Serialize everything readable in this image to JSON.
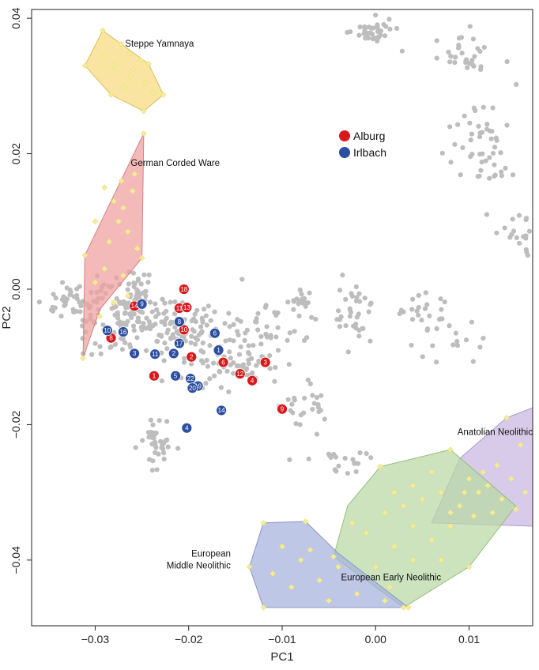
{
  "chart_data": {
    "type": "scatter",
    "xlabel": "PC1",
    "ylabel": "PC2",
    "xlim": [
      -0.0368,
      0.0168
    ],
    "ylim": [
      -0.0497,
      0.0413
    ],
    "xticks": [
      -0.03,
      -0.02,
      -0.01,
      0.0,
      0.01
    ],
    "xtick_labels": [
      "−0.03",
      "−0.02",
      "−0.01",
      "0.00",
      "0.01"
    ],
    "yticks": [
      -0.04,
      -0.02,
      0.0,
      0.02,
      0.04
    ],
    "ytick_labels": [
      "−0.04",
      "−0.02",
      "0.00",
      "0.02",
      "0.04"
    ],
    "colors": {
      "background_points": "#bdbdbd",
      "reference_points": "#f3ec95",
      "Alburg": "#d7191c",
      "Irlbach": "#2c4ea0"
    },
    "legend": {
      "placement": "top-center",
      "entries": [
        {
          "name": "Alburg",
          "color": "#d7191c"
        },
        {
          "name": "Irlbach",
          "color": "#2c4ea0"
        }
      ]
    },
    "groups": [
      {
        "name": "Steppe Yamnaya",
        "fill": "#f7d97e",
        "stroke": "#d9c060",
        "label_x": -0.0268,
        "label_y": 0.0358,
        "label_anchor": "start",
        "hull": [
          [
            -0.0292,
            0.0382
          ],
          [
            -0.0311,
            0.033
          ],
          [
            -0.0283,
            0.0287
          ],
          [
            -0.0248,
            0.0263
          ],
          [
            -0.0227,
            0.0287
          ],
          [
            -0.0243,
            0.0333
          ]
        ],
        "points": [
          [
            -0.029,
            0.0345
          ],
          [
            -0.028,
            0.033
          ],
          [
            -0.0272,
            0.0362
          ],
          [
            -0.0264,
            0.0348
          ],
          [
            -0.0259,
            0.0325
          ],
          [
            -0.0251,
            0.0338
          ],
          [
            -0.0246,
            0.0305
          ],
          [
            -0.0238,
            0.029
          ],
          [
            -0.027,
            0.0298
          ],
          [
            -0.0262,
            0.0315
          ],
          [
            -0.0283,
            0.0287
          ],
          [
            -0.0248,
            0.0263
          ],
          [
            -0.0227,
            0.0287
          ],
          [
            -0.0292,
            0.0382
          ],
          [
            -0.0311,
            0.033
          ],
          [
            -0.0243,
            0.0333
          ]
        ]
      },
      {
        "name": "German Corded Ware",
        "fill": "#f0a0a0",
        "stroke": "#d88080",
        "label_x": -0.0262,
        "label_y": 0.0182,
        "label_anchor": "start",
        "hull": [
          [
            -0.0248,
            0.023
          ],
          [
            -0.025,
            0.0046
          ],
          [
            -0.0295,
            -0.003
          ],
          [
            -0.0313,
            -0.0102
          ],
          [
            -0.0311,
            0.005
          ]
        ],
        "points": [
          [
            -0.0248,
            0.023
          ],
          [
            -0.025,
            0.0046
          ],
          [
            -0.0313,
            -0.0102
          ],
          [
            -0.0311,
            0.005
          ],
          [
            -0.029,
            0.015
          ],
          [
            -0.028,
            0.013
          ],
          [
            -0.027,
            0.012
          ],
          [
            -0.026,
            0.0145
          ],
          [
            -0.0275,
            0.01
          ],
          [
            -0.0265,
            0.0085
          ],
          [
            -0.0285,
            0.007
          ],
          [
            -0.0255,
            0.006
          ],
          [
            -0.029,
            0.003
          ],
          [
            -0.027,
            0.002
          ],
          [
            -0.03,
            0.001
          ],
          [
            -0.028,
            -0.002
          ],
          [
            -0.0295,
            -0.004
          ],
          [
            -0.0265,
            -0.001
          ],
          [
            -0.03,
            0.01
          ],
          [
            -0.0258,
            0.017
          ],
          [
            -0.0272,
            0.016
          ]
        ]
      },
      {
        "name": "Anatolian Neolithic",
        "fill": "#c9b7e0",
        "stroke": "#ad99cc",
        "label_x": 0.0168,
        "label_y": -0.0215,
        "label_anchor": "end",
        "hull": [
          [
            0.0168,
            -0.0175
          ],
          [
            0.0168,
            -0.035
          ],
          [
            0.006,
            -0.0345
          ],
          [
            0.009,
            -0.025
          ],
          [
            0.014,
            -0.019
          ]
        ],
        "points": [
          [
            0.014,
            -0.019
          ],
          [
            0.0155,
            -0.023
          ],
          [
            0.013,
            -0.026
          ],
          [
            0.0145,
            -0.028
          ],
          [
            0.012,
            -0.029
          ],
          [
            0.01,
            -0.028
          ],
          [
            0.011,
            -0.03
          ],
          [
            0.0135,
            -0.031
          ],
          [
            0.015,
            -0.0325
          ],
          [
            0.009,
            -0.032
          ],
          [
            0.008,
            -0.033
          ],
          [
            0.0105,
            -0.0335
          ],
          [
            0.0125,
            -0.033
          ],
          [
            0.016,
            -0.03
          ],
          [
            0.0115,
            -0.027
          ],
          [
            0.0095,
            -0.03
          ]
        ]
      },
      {
        "name": "European Early Neolithic",
        "fill": "#b8d8a4",
        "stroke": "#96be80",
        "label_x": 0.007,
        "label_y": -0.043,
        "label_anchor": "end",
        "hull": [
          [
            0.008,
            -0.0237
          ],
          [
            0.015,
            -0.032
          ],
          [
            0.01,
            -0.041
          ],
          [
            0.003,
            -0.047
          ],
          [
            -0.0045,
            -0.0395
          ],
          [
            -0.003,
            -0.032
          ],
          [
            0.0005,
            -0.0262
          ]
        ],
        "points": [
          [
            0.008,
            -0.0237
          ],
          [
            0.0005,
            -0.0262
          ],
          [
            0.003,
            -0.047
          ],
          [
            -0.0045,
            -0.0395
          ],
          [
            0.006,
            -0.027
          ],
          [
            0.004,
            -0.029
          ],
          [
            0.002,
            -0.03
          ],
          [
            0.003,
            -0.032
          ],
          [
            0.005,
            -0.031
          ],
          [
            0.007,
            -0.03
          ],
          [
            0.001,
            -0.033
          ],
          [
            0.004,
            -0.035
          ],
          [
            -0.001,
            -0.036
          ],
          [
            0.002,
            -0.038
          ],
          [
            0.006,
            -0.037
          ],
          [
            0.008,
            -0.035
          ],
          [
            0.004,
            -0.04
          ],
          [
            0.0,
            -0.041
          ],
          [
            0.007,
            -0.04
          ],
          [
            0.01,
            -0.041
          ],
          [
            -0.0025,
            -0.0345
          ],
          [
            0.0015,
            -0.044
          ]
        ]
      },
      {
        "name": "European Middle Neolithic",
        "fill": "#a6b2dc",
        "stroke": "#8a97c4",
        "label_x": -0.0155,
        "label_y": -0.0395,
        "label_anchor": "end",
        "label_lines": [
          "European",
          "Middle Neolithic"
        ],
        "hull": [
          [
            -0.012,
            -0.0345
          ],
          [
            -0.0075,
            -0.0343
          ],
          [
            -0.004,
            -0.039
          ],
          [
            0.0035,
            -0.047
          ],
          [
            -0.012,
            -0.047
          ],
          [
            -0.0135,
            -0.041
          ]
        ],
        "points": [
          [
            -0.012,
            -0.0345
          ],
          [
            -0.0075,
            -0.0343
          ],
          [
            -0.012,
            -0.047
          ],
          [
            -0.0135,
            -0.041
          ],
          [
            -0.01,
            -0.038
          ],
          [
            -0.008,
            -0.04
          ],
          [
            -0.006,
            -0.043
          ],
          [
            -0.011,
            -0.042
          ],
          [
            -0.009,
            -0.044
          ],
          [
            -0.005,
            -0.046
          ],
          [
            -0.002,
            -0.045
          ],
          [
            0.001,
            -0.046
          ],
          [
            -0.004,
            -0.041
          ],
          [
            -0.007,
            -0.0385
          ],
          [
            0.0035,
            -0.047
          ]
        ]
      }
    ],
    "samples": [
      {
        "site": "Alburg",
        "label": "18",
        "x": -0.0205,
        "y": -0.0
      },
      {
        "site": "Alburg",
        "label": "14",
        "x": -0.0258,
        "y": -0.0025
      },
      {
        "site": "Alburg",
        "label": "11",
        "x": -0.021,
        "y": -0.0028
      },
      {
        "site": "Alburg",
        "label": "13",
        "x": -0.0202,
        "y": -0.0027
      },
      {
        "site": "Alburg",
        "label": "10",
        "x": -0.0205,
        "y": -0.006
      },
      {
        "site": "Alburg",
        "label": "8",
        "x": -0.0283,
        "y": -0.0072
      },
      {
        "site": "Alburg",
        "label": "2",
        "x": -0.0197,
        "y": -0.01
      },
      {
        "site": "Alburg",
        "label": "6",
        "x": -0.0163,
        "y": -0.0108
      },
      {
        "site": "Alburg",
        "label": "3",
        "x": -0.0118,
        "y": -0.0108
      },
      {
        "site": "Alburg",
        "label": "12",
        "x": -0.0145,
        "y": -0.0125
      },
      {
        "site": "Alburg",
        "label": "4",
        "x": -0.0132,
        "y": -0.0135
      },
      {
        "site": "Alburg",
        "label": "1",
        "x": -0.0237,
        "y": -0.0128
      },
      {
        "site": "Alburg",
        "label": "9",
        "x": -0.01,
        "y": -0.0177
      },
      {
        "site": "Irlbach",
        "label": "9",
        "x": -0.025,
        "y": -0.0022
      },
      {
        "site": "Irlbach",
        "label": "8",
        "x": -0.021,
        "y": -0.0048
      },
      {
        "site": "Irlbach",
        "label": "6",
        "x": -0.0172,
        "y": -0.0065
      },
      {
        "site": "Irlbach",
        "label": "10",
        "x": -0.0287,
        "y": -0.0061
      },
      {
        "site": "Irlbach",
        "label": "16",
        "x": -0.027,
        "y": -0.0063
      },
      {
        "site": "Irlbach",
        "label": "17",
        "x": -0.021,
        "y": -0.008
      },
      {
        "site": "Irlbach",
        "label": "1",
        "x": -0.0168,
        "y": -0.009
      },
      {
        "site": "Irlbach",
        "label": "3",
        "x": -0.0258,
        "y": -0.0095
      },
      {
        "site": "Irlbach",
        "label": "11",
        "x": -0.0236,
        "y": -0.0096
      },
      {
        "site": "Irlbach",
        "label": "2",
        "x": -0.0216,
        "y": -0.0095
      },
      {
        "site": "Irlbach",
        "label": "5",
        "x": -0.0214,
        "y": -0.0128
      },
      {
        "site": "Irlbach",
        "label": "22",
        "x": -0.0198,
        "y": -0.0132
      },
      {
        "site": "Irlbach",
        "label": "19",
        "x": -0.019,
        "y": -0.0143
      },
      {
        "site": "Irlbach",
        "label": "20",
        "x": -0.0196,
        "y": -0.0146
      },
      {
        "site": "Irlbach",
        "label": "14",
        "x": -0.0165,
        "y": -0.0179
      },
      {
        "site": "Irlbach",
        "label": "4",
        "x": -0.0202,
        "y": -0.0205
      }
    ]
  }
}
